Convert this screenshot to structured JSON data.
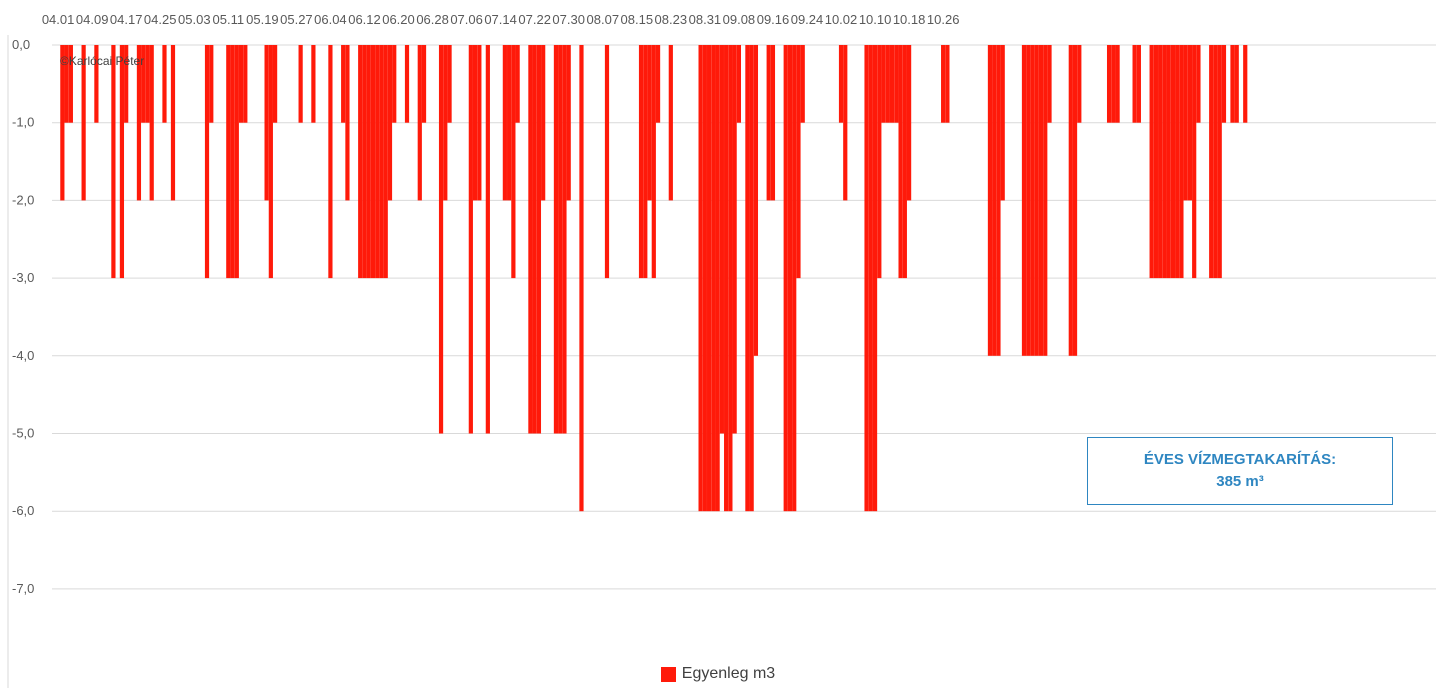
{
  "watermark": "©Karlócai Péter",
  "annotation": {
    "line1": "ÉVES VÍZMEGTAKARÍTÁS:",
    "line2": "385  m³"
  },
  "legend": {
    "label": "Egyenleg  m3",
    "color": "#ff1a0a"
  },
  "chart_data": {
    "type": "bar",
    "series": [
      {
        "name": "Egyenleg  m3",
        "color": "#ff1a0a"
      }
    ],
    "x_tick_labels": [
      "04.01",
      "04.09",
      "04.17",
      "04.25",
      "05.03",
      "05.11",
      "05.19",
      "05.27",
      "06.04",
      "06.12",
      "06.20",
      "06.28",
      "07.06",
      "07.14",
      "07.22",
      "07.30",
      "08.07",
      "08.15",
      "08.23",
      "08.31",
      "09.08",
      "09.16",
      "09.24",
      "10.02",
      "10.10",
      "10.18",
      "10.26"
    ],
    "y_ticks": [
      {
        "value": 0,
        "label": "0,0"
      },
      {
        "value": -1,
        "label": "-1,0"
      },
      {
        "value": -2,
        "label": "-2,0"
      },
      {
        "value": -3,
        "label": "-3,0"
      },
      {
        "value": -4,
        "label": "-4,0"
      },
      {
        "value": -5,
        "label": "-5,0"
      },
      {
        "value": -6,
        "label": "-6,0"
      },
      {
        "value": -7,
        "label": "-7,0"
      }
    ],
    "ylim": [
      -7,
      0
    ],
    "x_axis_position": "top",
    "grid": true,
    "legend_position": "bottom",
    "start_date": "04.01",
    "values": [
      0,
      -2,
      -1,
      -1,
      0,
      0,
      -2,
      0,
      0,
      -1,
      0,
      0,
      0,
      -3,
      0,
      -3,
      -1,
      0,
      0,
      -2,
      -1,
      -1,
      -2,
      0,
      0,
      -1,
      0,
      -2,
      0,
      0,
      0,
      0,
      0,
      0,
      0,
      -3,
      -1,
      0,
      0,
      0,
      -3,
      -3,
      -3,
      -1,
      -1,
      0,
      0,
      0,
      0,
      -2,
      -3,
      -1,
      0,
      0,
      0,
      0,
      0,
      -1,
      0,
      0,
      -1,
      0,
      0,
      0,
      -3,
      0,
      0,
      -1,
      -2,
      0,
      0,
      -3,
      -3,
      -3,
      -3,
      -3,
      -3,
      -3,
      -2,
      -1,
      0,
      0,
      -1,
      0,
      0,
      -2,
      -1,
      0,
      0,
      0,
      -5,
      -2,
      -1,
      0,
      0,
      0,
      0,
      -5,
      -2,
      -2,
      0,
      -5,
      0,
      0,
      0,
      -2,
      -2,
      -3,
      -1,
      0,
      0,
      -5,
      -5,
      -5,
      -2,
      0,
      0,
      -5,
      -5,
      -5,
      -2,
      0,
      0,
      -6,
      0,
      0,
      0,
      0,
      0,
      -3,
      0,
      0,
      0,
      0,
      0,
      0,
      0,
      -3,
      -3,
      -2,
      -3,
      -1,
      0,
      0,
      -2,
      0,
      0,
      0,
      0,
      0,
      0,
      -6,
      -6,
      -6,
      -6,
      -6,
      -5,
      -6,
      -6,
      -5,
      -1,
      0,
      -6,
      -6,
      -4,
      0,
      0,
      -2,
      -2,
      0,
      0,
      -6,
      -6,
      -6,
      -3,
      -1,
      0,
      0,
      0,
      0,
      0,
      0,
      0,
      0,
      -1,
      -2,
      0,
      0,
      0,
      0,
      -6,
      -6,
      -6,
      -3,
      -1,
      -1,
      -1,
      -1,
      -3,
      -3,
      -2,
      0,
      0,
      0,
      0,
      0,
      0,
      0,
      -1,
      -1,
      0,
      0,
      0,
      0,
      0,
      0,
      0,
      0,
      0,
      -4,
      -4,
      -4,
      -2,
      0,
      0,
      0,
      0,
      -4,
      -4,
      -4,
      -4,
      -4,
      -4,
      -1,
      0,
      0,
      0,
      0,
      -4,
      -4,
      -1,
      0,
      0,
      0,
      0,
      0,
      0,
      -1,
      -1,
      -1,
      0,
      0,
      0,
      -1,
      -1,
      0,
      0,
      -3,
      -3,
      -3,
      -3,
      -3,
      -3,
      -3,
      -3,
      -2,
      -2,
      -3,
      -1,
      0,
      0,
      -3,
      -3,
      -3,
      -1,
      0,
      -1,
      -1,
      0,
      -1
    ]
  }
}
